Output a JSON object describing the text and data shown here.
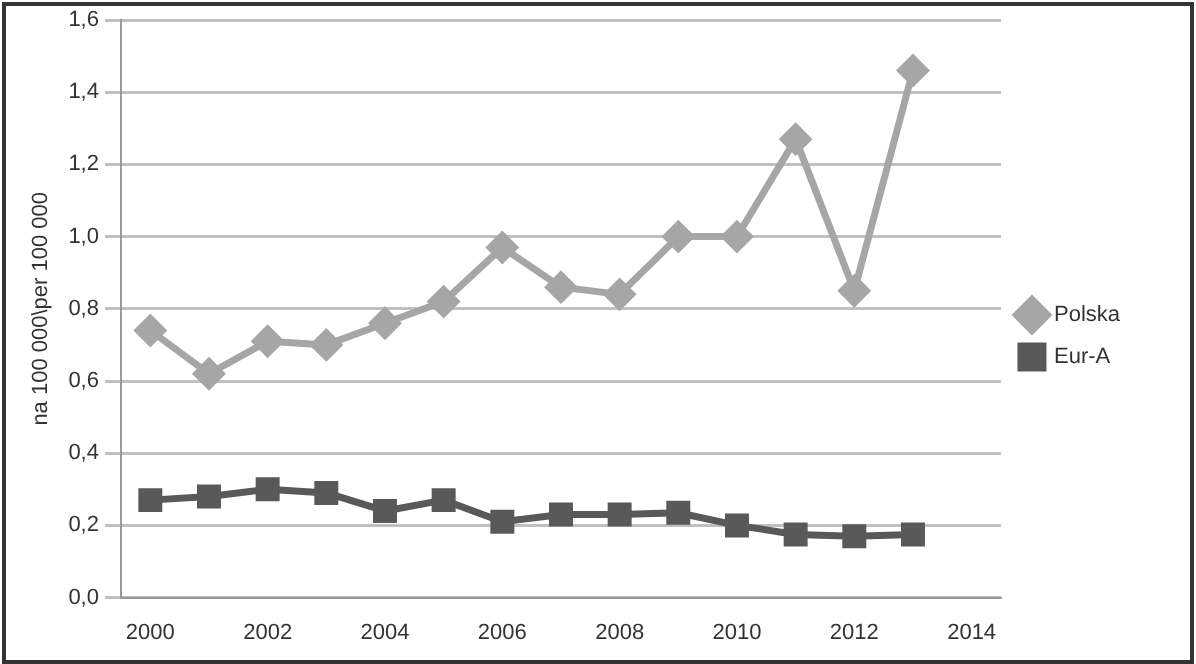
{
  "chart_data": {
    "type": "line",
    "ylabel": "na 100 000\\per 100 000",
    "categories": [
      "2000",
      null,
      "2002",
      null,
      "2004",
      null,
      "2006",
      null,
      "2008",
      null,
      "2010",
      null,
      "2012",
      null,
      "2014"
    ],
    "series": [
      {
        "name": "Polska",
        "color": "#a6a6a6",
        "marker": "diamond",
        "values": [
          0.74,
          0.62,
          0.71,
          0.7,
          0.76,
          0.82,
          0.97,
          0.86,
          0.84,
          1.0,
          1.0,
          1.27,
          0.85,
          1.46,
          null
        ]
      },
      {
        "name": "Eur-A",
        "color": "#595959",
        "marker": "square",
        "values": [
          0.27,
          0.28,
          0.3,
          0.29,
          0.24,
          0.27,
          0.21,
          0.23,
          0.23,
          0.235,
          0.2,
          0.175,
          0.17,
          0.175,
          null
        ]
      }
    ],
    "ylim": [
      0,
      1.6
    ],
    "yticks": [
      {
        "value": 0,
        "label": "0,0"
      },
      {
        "value": 0.2,
        "label": "0,2"
      },
      {
        "value": 0.4,
        "label": "0,4"
      },
      {
        "value": 0.6,
        "label": "0,6"
      },
      {
        "value": 0.8,
        "label": "0,8"
      },
      {
        "value": 1.0,
        "label": "1,0"
      },
      {
        "value": 1.2,
        "label": "1,2"
      },
      {
        "value": 1.4,
        "label": "1,4"
      },
      {
        "value": 1.6,
        "label": "1,6"
      }
    ],
    "grid": "y",
    "legend": "right",
    "line_style": "solid"
  }
}
